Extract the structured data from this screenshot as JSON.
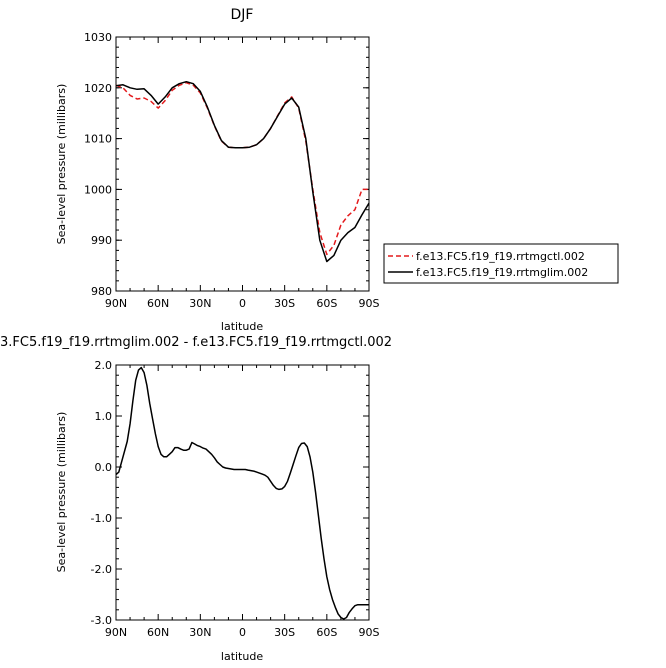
{
  "chart_data": [
    {
      "type": "line",
      "title": "DJF",
      "xlabel": "latitude",
      "ylabel": "Sea-level pressure (millibars)",
      "xlim": [
        90,
        -90
      ],
      "ylim": [
        980,
        1030
      ],
      "xticks": [
        90,
        60,
        30,
        0,
        -30,
        -60,
        -90
      ],
      "xtick_labels": [
        "90N",
        "60N",
        "30N",
        "0",
        "30S",
        "60S",
        "90S"
      ],
      "yticks": [
        980,
        990,
        1000,
        1010,
        1020,
        1030
      ],
      "ytick_labels": [
        "980",
        "990",
        "1000",
        "1010",
        "1020",
        "1030"
      ],
      "legend_position": "right",
      "series": [
        {
          "name": "f.e13.FC5.f19_f19.rrtmgctl.002",
          "color": "#e41a1c",
          "dash": "dashed",
          "x": [
            90,
            85,
            80,
            75,
            70,
            65,
            60,
            55,
            50,
            45,
            40,
            35,
            30,
            25,
            20,
            15,
            10,
            5,
            0,
            -5,
            -10,
            -15,
            -20,
            -25,
            -30,
            -35,
            -40,
            -45,
            -50,
            -55,
            -60,
            -65,
            -70,
            -75,
            -80,
            -85,
            -90
          ],
          "y": [
            1020.5,
            1020.0,
            1018.5,
            1017.8,
            1018.0,
            1017.3,
            1016.0,
            1017.5,
            1019.5,
            1020.5,
            1021.0,
            1020.5,
            1019.0,
            1016.0,
            1012.5,
            1009.5,
            1008.3,
            1008.2,
            1008.2,
            1008.3,
            1008.8,
            1010.0,
            1012.0,
            1014.5,
            1017.0,
            1018.2,
            1016.0,
            1009.5,
            1000.0,
            991.5,
            987.2,
            989.0,
            993.0,
            994.8,
            996.0,
            1000.0,
            1000.0
          ]
        },
        {
          "name": "f.e13.FC5.f19_f19.rrtmglim.002",
          "color": "#000000",
          "dash": "solid",
          "x": [
            90,
            85,
            80,
            75,
            70,
            65,
            60,
            55,
            50,
            45,
            40,
            35,
            30,
            25,
            20,
            15,
            10,
            5,
            0,
            -5,
            -10,
            -15,
            -20,
            -25,
            -30,
            -35,
            -40,
            -45,
            -50,
            -55,
            -60,
            -65,
            -70,
            -75,
            -80,
            -85,
            -90
          ],
          "y": [
            1020.4,
            1020.6,
            1020.0,
            1019.7,
            1019.8,
            1018.5,
            1016.8,
            1018.2,
            1020.0,
            1020.8,
            1021.2,
            1020.8,
            1019.3,
            1016.2,
            1012.6,
            1009.6,
            1008.3,
            1008.2,
            1008.2,
            1008.3,
            1008.8,
            1010.0,
            1012.0,
            1014.4,
            1016.8,
            1018.0,
            1016.2,
            1010.0,
            999.5,
            990.0,
            985.8,
            987.0,
            990.0,
            991.5,
            992.5,
            995.0,
            997.3
          ]
        }
      ]
    },
    {
      "type": "line",
      "title": "3.FC5.f19_f19.rrtmglim.002 - f.e13.FC5.f19_f19.rrtmgctl.002",
      "xlabel": "latitude",
      "ylabel": "Sea-level pressure (millibars)",
      "xlim": [
        90,
        -90
      ],
      "ylim": [
        -3.0,
        2.0
      ],
      "xticks": [
        90,
        60,
        30,
        0,
        -30,
        -60,
        -90
      ],
      "xtick_labels": [
        "90N",
        "60N",
        "30N",
        "0",
        "30S",
        "60S",
        "90S"
      ],
      "yticks": [
        -3.0,
        -2.0,
        -1.0,
        0.0,
        1.0,
        2.0
      ],
      "ytick_labels": [
        "-3.0",
        "-2.0",
        "-1.0",
        "0.0",
        "1.0",
        "2.0"
      ],
      "series": [
        {
          "color": "#000000",
          "dash": "solid",
          "x": [
            90,
            88,
            85,
            82,
            80,
            78,
            76,
            74,
            72,
            70,
            68,
            66,
            64,
            62,
            60,
            58,
            56,
            54,
            52,
            50,
            48,
            46,
            44,
            42,
            40,
            38,
            36,
            34,
            32,
            30,
            28,
            26,
            24,
            22,
            20,
            18,
            16,
            14,
            12,
            10,
            8,
            6,
            4,
            2,
            0,
            -2,
            -4,
            -6,
            -8,
            -10,
            -12,
            -14,
            -16,
            -18,
            -20,
            -22,
            -24,
            -26,
            -28,
            -30,
            -32,
            -34,
            -36,
            -38,
            -40,
            -42,
            -44,
            -46,
            -48,
            -50,
            -52,
            -54,
            -56,
            -58,
            -60,
            -62,
            -64,
            -66,
            -68,
            -70,
            -72,
            -74,
            -76,
            -78,
            -80,
            -82,
            -84,
            -86,
            -88,
            -90
          ],
          "y": [
            -0.15,
            -0.1,
            0.2,
            0.5,
            0.85,
            1.3,
            1.7,
            1.9,
            1.95,
            1.85,
            1.6,
            1.25,
            0.95,
            0.65,
            0.4,
            0.25,
            0.2,
            0.2,
            0.25,
            0.3,
            0.38,
            0.38,
            0.35,
            0.33,
            0.33,
            0.35,
            0.48,
            0.45,
            0.42,
            0.4,
            0.37,
            0.35,
            0.3,
            0.25,
            0.18,
            0.1,
            0.05,
            0.0,
            -0.02,
            -0.03,
            -0.04,
            -0.05,
            -0.05,
            -0.05,
            -0.05,
            -0.05,
            -0.06,
            -0.07,
            -0.08,
            -0.1,
            -0.12,
            -0.14,
            -0.16,
            -0.2,
            -0.28,
            -0.36,
            -0.42,
            -0.44,
            -0.43,
            -0.38,
            -0.28,
            -0.12,
            0.05,
            0.22,
            0.38,
            0.46,
            0.47,
            0.4,
            0.2,
            -0.1,
            -0.5,
            -0.95,
            -1.4,
            -1.8,
            -2.15,
            -2.4,
            -2.6,
            -2.75,
            -2.88,
            -2.95,
            -2.98,
            -2.95,
            -2.85,
            -2.78,
            -2.72,
            -2.7,
            -2.7,
            -2.7,
            -2.7,
            -2.7
          ]
        }
      ]
    }
  ]
}
